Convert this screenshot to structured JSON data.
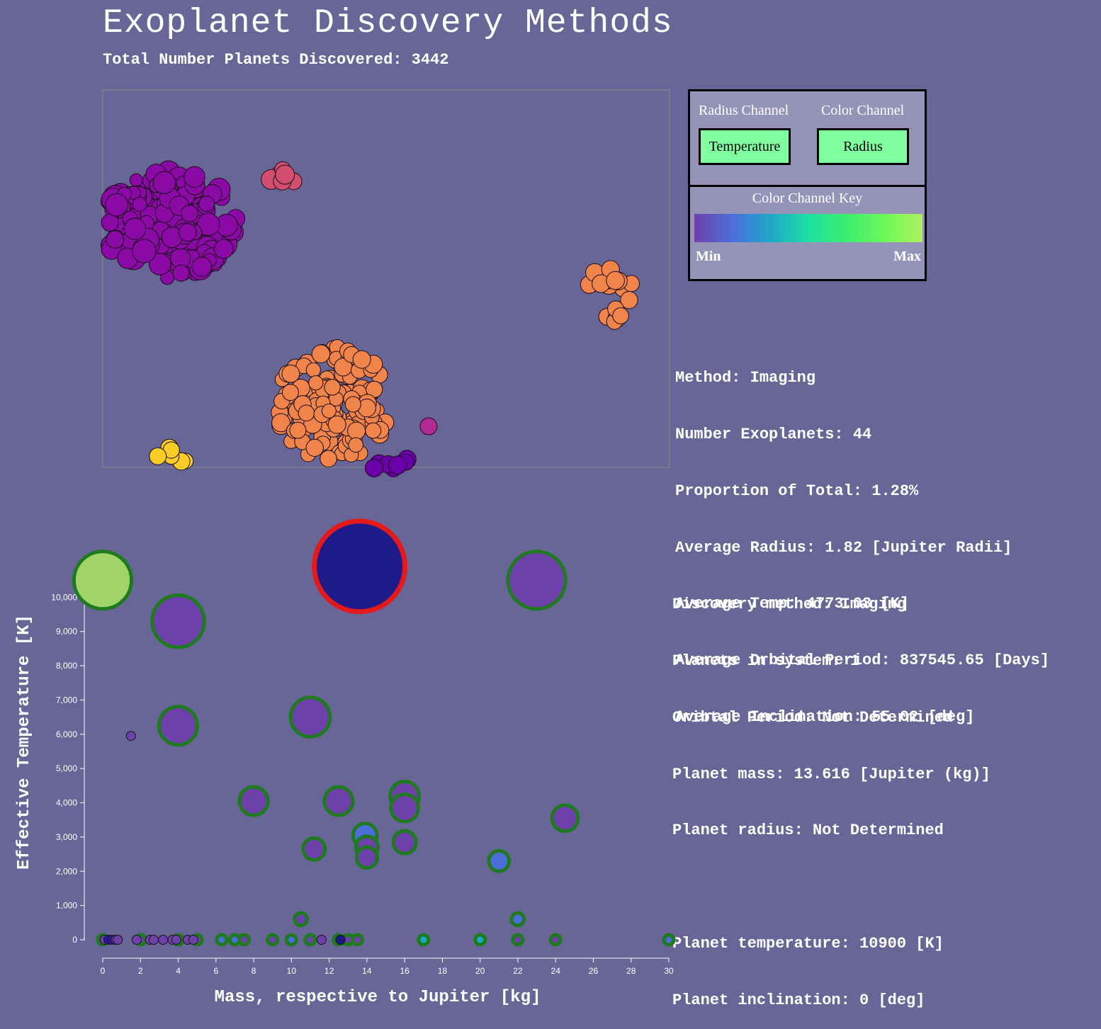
{
  "page": {
    "title": "Exoplanet Discovery Methods",
    "subtitle": "Total Number Planets Discovered: 3442"
  },
  "controls": {
    "radius_channel_label": "Radius Channel",
    "color_channel_label": "Color Channel",
    "radius_channel_value": "Temperature",
    "color_channel_value": "Radius",
    "key_title": "Color Channel Key",
    "key_min": "Min",
    "key_max": "Max",
    "key_colors": [
      "#6e40aa",
      "#4c6edb",
      "#1ea8c8",
      "#1ddfa3",
      "#3ded6e",
      "#6df85a",
      "#aff05b"
    ]
  },
  "method_info": {
    "method": "Method: Imaging",
    "count": "Number Exoplanets: 44",
    "proportion": "Proportion of Total: 1.28%",
    "radius": "Average Radius: 1.82 [Jupiter Radii]",
    "temp": "Average Temp: 4773.03 [K]",
    "period": "Average Orbital Period: 837545.65 [Days]",
    "inclination": "Average Inclination: 55.02 [deg]"
  },
  "planet_info": {
    "method": "Discovery method: Imaging",
    "system": "Planets in system: 1",
    "period": "Oribtal Period: Not Determined",
    "mass": "Planet mass: 13.616 [Jupiter (kg)]",
    "radius": "Planet radius: Not Determined",
    "temperature": "Planet temperature: 10900 [K]",
    "inclination": "Planet inclination: 0 [deg]"
  },
  "bubble_clusters": [
    {
      "name": "purple-cluster",
      "color": "#8b0aa5",
      "count": 160,
      "cluster_index": 0
    },
    {
      "name": "pink-cluster",
      "color": "#d14e6f",
      "count": 6,
      "cluster_index": 1
    },
    {
      "name": "orange-cluster",
      "color": "#f0844b",
      "count": 150,
      "cluster_index": 2
    },
    {
      "name": "right-orange-cluster",
      "color": "#f0844b",
      "count": 16,
      "cluster_index": 3
    },
    {
      "name": "yellow-cluster",
      "color": "#fccd25",
      "count": 6,
      "cluster_index": 4
    },
    {
      "name": "violet-row",
      "color": "#6a00a8",
      "count": 7,
      "cluster_index": 5
    },
    {
      "name": "magenta-single",
      "color": "#b12a90",
      "count": 1,
      "cluster_index": 6
    }
  ],
  "chart_data": {
    "type": "scatter",
    "xlabel": "Mass, respective to Jupiter [kg]",
    "ylabel": "Effective Temperature [K]",
    "xlim": [
      0,
      30
    ],
    "ylim": [
      0,
      11000
    ],
    "x_ticks": [
      0,
      2,
      4,
      6,
      8,
      10,
      12,
      14,
      16,
      18,
      20,
      22,
      24,
      26,
      28,
      30
    ],
    "x_tick_labels": [
      "0",
      "2",
      "4",
      "6",
      "8",
      "10",
      "12",
      "14",
      "16",
      "18",
      "20",
      "22",
      "24",
      "26",
      "28",
      "30"
    ],
    "y_ticks": [
      0,
      1000,
      2000,
      3000,
      4000,
      5000,
      6000,
      7000,
      8000,
      9000,
      10000
    ],
    "y_tick_labels": [
      "0",
      "1,000",
      "2,000",
      "3,000",
      "4,000",
      "5,000",
      "6,000",
      "7,000",
      "8,000",
      "9,000",
      "10,000"
    ],
    "selected_stroke": "#e31a1c",
    "imaging_stroke": "#1f7a1f",
    "points": [
      {
        "x": 13.616,
        "y": 10900,
        "color": "#1f1a8a",
        "group": "selected"
      },
      {
        "x": 0,
        "y": 10500,
        "color": "#a0d468",
        "group": "imaging"
      },
      {
        "x": 23,
        "y": 10500,
        "color": "#6e40aa",
        "group": "imaging"
      },
      {
        "x": 4,
        "y": 9300,
        "color": "#6e40aa",
        "group": "imaging"
      },
      {
        "x": 11,
        "y": 6500,
        "color": "#6e40aa",
        "group": "imaging"
      },
      {
        "x": 4,
        "y": 6250,
        "color": "#6e40aa",
        "group": "imaging"
      },
      {
        "x": 1.5,
        "y": 5950,
        "color": "#6e40aa",
        "group": "other"
      },
      {
        "x": 8,
        "y": 4050,
        "color": "#6e40aa",
        "group": "imaging"
      },
      {
        "x": 12.5,
        "y": 4050,
        "color": "#6e40aa",
        "group": "imaging"
      },
      {
        "x": 16,
        "y": 4200,
        "color": "#6e40aa",
        "group": "imaging"
      },
      {
        "x": 16,
        "y": 3850,
        "color": "#6e40aa",
        "group": "imaging"
      },
      {
        "x": 24.5,
        "y": 3550,
        "color": "#6e40aa",
        "group": "imaging"
      },
      {
        "x": 13.9,
        "y": 3050,
        "color": "#4c6edb",
        "group": "imaging"
      },
      {
        "x": 16,
        "y": 2850,
        "color": "#6e40aa",
        "group": "imaging"
      },
      {
        "x": 14,
        "y": 2700,
        "color": "#6e40aa",
        "group": "imaging"
      },
      {
        "x": 11.2,
        "y": 2650,
        "color": "#6e40aa",
        "group": "imaging"
      },
      {
        "x": 14,
        "y": 2400,
        "color": "#6e40aa",
        "group": "imaging"
      },
      {
        "x": 21,
        "y": 2300,
        "color": "#4c6edb",
        "group": "imaging"
      },
      {
        "x": 10.5,
        "y": 600,
        "color": "#6e40aa",
        "group": "imaging"
      },
      {
        "x": 22,
        "y": 600,
        "color": "#4c6edb",
        "group": "imaging"
      },
      {
        "x": 0,
        "y": 0,
        "color": "#6e40aa",
        "group": "imaging"
      },
      {
        "x": 2,
        "y": 0,
        "color": "#6e40aa",
        "group": "imaging"
      },
      {
        "x": 4,
        "y": 0,
        "color": "#6e40aa",
        "group": "imaging"
      },
      {
        "x": 5,
        "y": 0,
        "color": "#6e40aa",
        "group": "imaging"
      },
      {
        "x": 6.3,
        "y": 0,
        "color": "#4c6edb",
        "group": "imaging"
      },
      {
        "x": 7,
        "y": 0,
        "color": "#4c6edb",
        "group": "imaging"
      },
      {
        "x": 7.5,
        "y": 0,
        "color": "#6e40aa",
        "group": "imaging"
      },
      {
        "x": 9,
        "y": 0,
        "color": "#6e40aa",
        "group": "imaging"
      },
      {
        "x": 10,
        "y": 0,
        "color": "#4c6edb",
        "group": "imaging"
      },
      {
        "x": 11,
        "y": 0,
        "color": "#6e40aa",
        "group": "imaging"
      },
      {
        "x": 12.5,
        "y": 0,
        "color": "#6e40aa",
        "group": "imaging"
      },
      {
        "x": 13,
        "y": 0,
        "color": "#6e40aa",
        "group": "imaging"
      },
      {
        "x": 13.5,
        "y": 0,
        "color": "#6e40aa",
        "group": "imaging"
      },
      {
        "x": 17,
        "y": 0,
        "color": "#1ea8c8",
        "group": "imaging"
      },
      {
        "x": 20,
        "y": 0,
        "color": "#1ea8c8",
        "group": "imaging"
      },
      {
        "x": 22,
        "y": 0,
        "color": "#6e40aa",
        "group": "imaging"
      },
      {
        "x": 24,
        "y": 0,
        "color": "#6e40aa",
        "group": "imaging"
      },
      {
        "x": 30,
        "y": 0,
        "color": "#4c6edb",
        "group": "imaging"
      },
      {
        "x": 0.1,
        "y": 0,
        "color": "#6e40aa",
        "group": "other"
      },
      {
        "x": 0.3,
        "y": 0,
        "color": "#2a1a9a",
        "group": "other"
      },
      {
        "x": 0.5,
        "y": 0,
        "color": "#2a1a9a",
        "group": "other"
      },
      {
        "x": 0.7,
        "y": 0,
        "color": "#6e40aa",
        "group": "other"
      },
      {
        "x": 0.8,
        "y": 0,
        "color": "#6e40aa",
        "group": "other"
      },
      {
        "x": 1.8,
        "y": 0,
        "color": "#6e40aa",
        "group": "other"
      },
      {
        "x": 2.5,
        "y": 0,
        "color": "#6e40aa",
        "group": "other"
      },
      {
        "x": 2.7,
        "y": 0,
        "color": "#6e40aa",
        "group": "other"
      },
      {
        "x": 3.2,
        "y": 0,
        "color": "#6e40aa",
        "group": "other"
      },
      {
        "x": 3.7,
        "y": 0,
        "color": "#6e40aa",
        "group": "other"
      },
      {
        "x": 3.9,
        "y": 0,
        "color": "#6e40aa",
        "group": "other"
      },
      {
        "x": 4.5,
        "y": 0,
        "color": "#6e40aa",
        "group": "other"
      },
      {
        "x": 4.8,
        "y": 0,
        "color": "#6e40aa",
        "group": "other"
      },
      {
        "x": 11.6,
        "y": 0,
        "color": "#6e40aa",
        "group": "other"
      },
      {
        "x": 12.6,
        "y": 0,
        "color": "#1f1a8a",
        "group": "other"
      }
    ]
  }
}
